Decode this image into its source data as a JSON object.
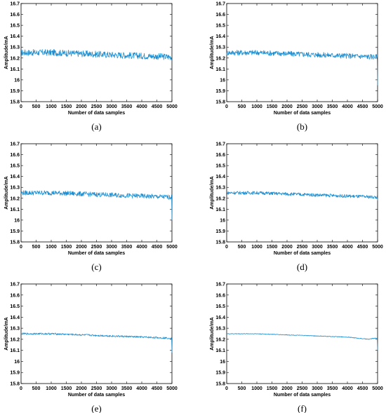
{
  "chart_data": [
    {
      "type": "line",
      "label": "(a)",
      "xlabel": "Number of data samples",
      "ylabel": "Amplitude/mA",
      "xlim": [
        0,
        5000
      ],
      "ylim": [
        15.8,
        16.7
      ],
      "xticks": [
        0,
        500,
        1000,
        1500,
        2000,
        2500,
        3000,
        3500,
        4000,
        4500,
        5000
      ],
      "yticks": [
        15.8,
        15.9,
        16,
        16.1,
        16.2,
        16.3,
        16.4,
        16.5,
        16.6,
        16.7
      ],
      "series_color": "#1f8fd0",
      "trend": {
        "x": [
          0,
          1000,
          2000,
          3000,
          4000,
          5000
        ],
        "y": [
          16.25,
          16.25,
          16.24,
          16.23,
          16.22,
          16.21
        ]
      },
      "noise_amplitude": 0.03,
      "end_dip": 16.18
    },
    {
      "type": "line",
      "label": "(b)",
      "xlabel": "Number of data samples",
      "ylabel": "Amplitude/mA",
      "xlim": [
        0,
        5000
      ],
      "ylim": [
        15.8,
        16.7
      ],
      "xticks": [
        0,
        500,
        1000,
        1500,
        2000,
        2500,
        3000,
        3500,
        4000,
        4500,
        5000
      ],
      "yticks": [
        15.8,
        15.9,
        16,
        16.1,
        16.2,
        16.3,
        16.4,
        16.5,
        16.6,
        16.7
      ],
      "series_color": "#1f8fd0",
      "trend": {
        "x": [
          0,
          1000,
          2000,
          3000,
          4000,
          5000
        ],
        "y": [
          16.25,
          16.25,
          16.24,
          16.23,
          16.22,
          16.21
        ]
      },
      "noise_amplitude": 0.025,
      "end_dip": 15.95
    },
    {
      "type": "line",
      "label": "(c)",
      "xlabel": "Number of data samples",
      "ylabel": "Amplitude/mA",
      "xlim": [
        0,
        5000
      ],
      "ylim": [
        15.8,
        16.7
      ],
      "xticks": [
        0,
        500,
        1000,
        1500,
        2000,
        2500,
        3000,
        3500,
        4000,
        4500,
        5000
      ],
      "yticks": [
        15.8,
        15.9,
        16,
        16.1,
        16.2,
        16.3,
        16.4,
        16.5,
        16.6,
        16.7
      ],
      "series_color": "#1f8fd0",
      "trend": {
        "x": [
          0,
          1000,
          2000,
          3000,
          4000,
          5000
        ],
        "y": [
          16.25,
          16.25,
          16.24,
          16.23,
          16.22,
          16.21
        ]
      },
      "noise_amplitude": 0.022,
      "end_dip": 16.0
    },
    {
      "type": "line",
      "label": "(d)",
      "xlabel": "Number of data samples",
      "ylabel": "Amplitude/mA",
      "xlim": [
        0,
        5000
      ],
      "ylim": [
        15.8,
        16.7
      ],
      "xticks": [
        0,
        500,
        1000,
        1500,
        2000,
        2500,
        3000,
        3500,
        4000,
        4500,
        5000
      ],
      "yticks": [
        15.8,
        15.9,
        16,
        16.1,
        16.2,
        16.3,
        16.4,
        16.5,
        16.6,
        16.7
      ],
      "series_color": "#1f8fd0",
      "trend": {
        "x": [
          0,
          1000,
          2000,
          3000,
          4000,
          5000
        ],
        "y": [
          16.25,
          16.25,
          16.24,
          16.23,
          16.22,
          16.21
        ]
      },
      "noise_amplitude": 0.015,
      "end_dip": 16.18
    },
    {
      "type": "line",
      "label": "(e)",
      "xlabel": "Number of data samples",
      "ylabel": "Amplitude/mA",
      "xlim": [
        0,
        5000
      ],
      "ylim": [
        15.8,
        16.7
      ],
      "xticks": [
        0,
        500,
        1000,
        1500,
        2000,
        2500,
        3000,
        3500,
        4000,
        4500,
        5000
      ],
      "yticks": [
        15.8,
        15.9,
        16,
        16.1,
        16.2,
        16.3,
        16.4,
        16.5,
        16.6,
        16.7
      ],
      "series_color": "#1f8fd0",
      "trend": {
        "x": [
          0,
          1000,
          2000,
          3000,
          4000,
          5000
        ],
        "y": [
          16.25,
          16.25,
          16.24,
          16.23,
          16.22,
          16.21
        ]
      },
      "noise_amplitude": 0.008,
      "end_dip": 16.08
    },
    {
      "type": "line",
      "label": "(f)",
      "xlabel": "Number of data samples",
      "ylabel": "Amplitude/mA",
      "xlim": [
        0,
        5000
      ],
      "ylim": [
        15.8,
        16.7
      ],
      "xticks": [
        0,
        500,
        1000,
        1500,
        2000,
        2500,
        3000,
        3500,
        4000,
        4500,
        5000
      ],
      "yticks": [
        15.8,
        15.9,
        16,
        16.1,
        16.2,
        16.3,
        16.4,
        16.5,
        16.6,
        16.7
      ],
      "series_color": "#1f8fd0",
      "trend": {
        "x": [
          0,
          1000,
          2000,
          3000,
          4000,
          4700,
          4900,
          5000
        ],
        "y": [
          16.25,
          16.25,
          16.24,
          16.23,
          16.22,
          16.2,
          16.21,
          16.21
        ]
      },
      "noise_amplitude": 0.003,
      "end_dip": 16.1
    }
  ]
}
